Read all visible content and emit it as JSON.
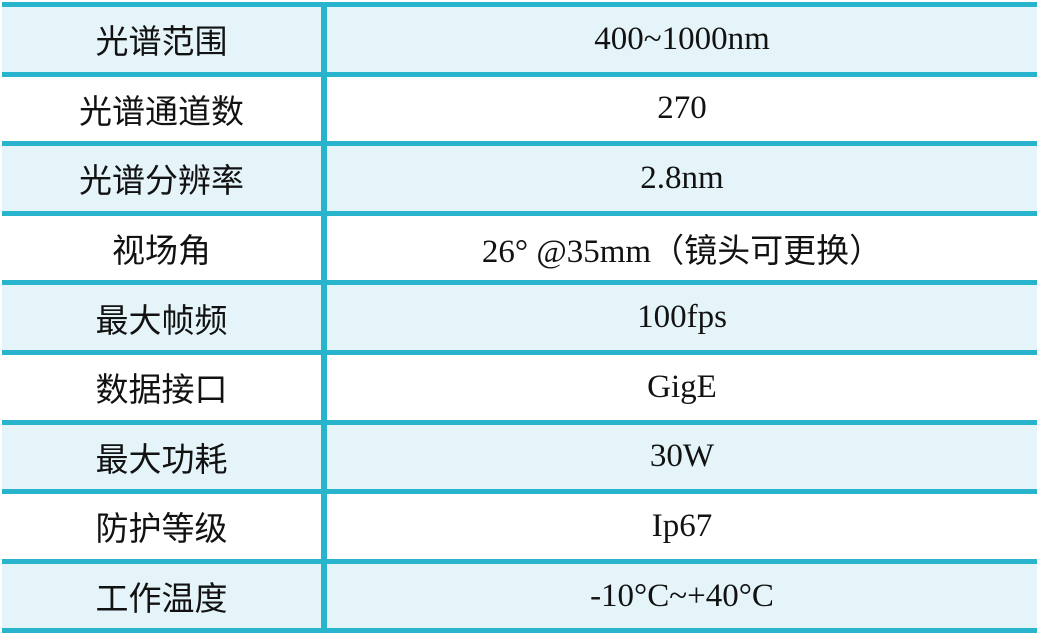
{
  "table": {
    "name": "spectral-camera-spec-table",
    "rows": [
      {
        "label": "光谱范围",
        "value": "400~1000nm"
      },
      {
        "label": "光谱通道数",
        "value": "270"
      },
      {
        "label": "光谱分辨率",
        "value": "2.8nm"
      },
      {
        "label": "视场角",
        "value": "26° @35mm（镜头可更换）"
      },
      {
        "label": "最大帧频",
        "value": "100fps"
      },
      {
        "label": "数据接口",
        "value": "GigE"
      },
      {
        "label": "最大功耗",
        "value": "30W"
      },
      {
        "label": "防护等级",
        "value": "Ip67"
      },
      {
        "label": "工作温度",
        "value": "-10°C~+40°C"
      }
    ]
  },
  "colors": {
    "border": "#27b4cc",
    "alt_row": "#e4f4f9",
    "base_row": "#ffffff",
    "text": "#121212"
  }
}
